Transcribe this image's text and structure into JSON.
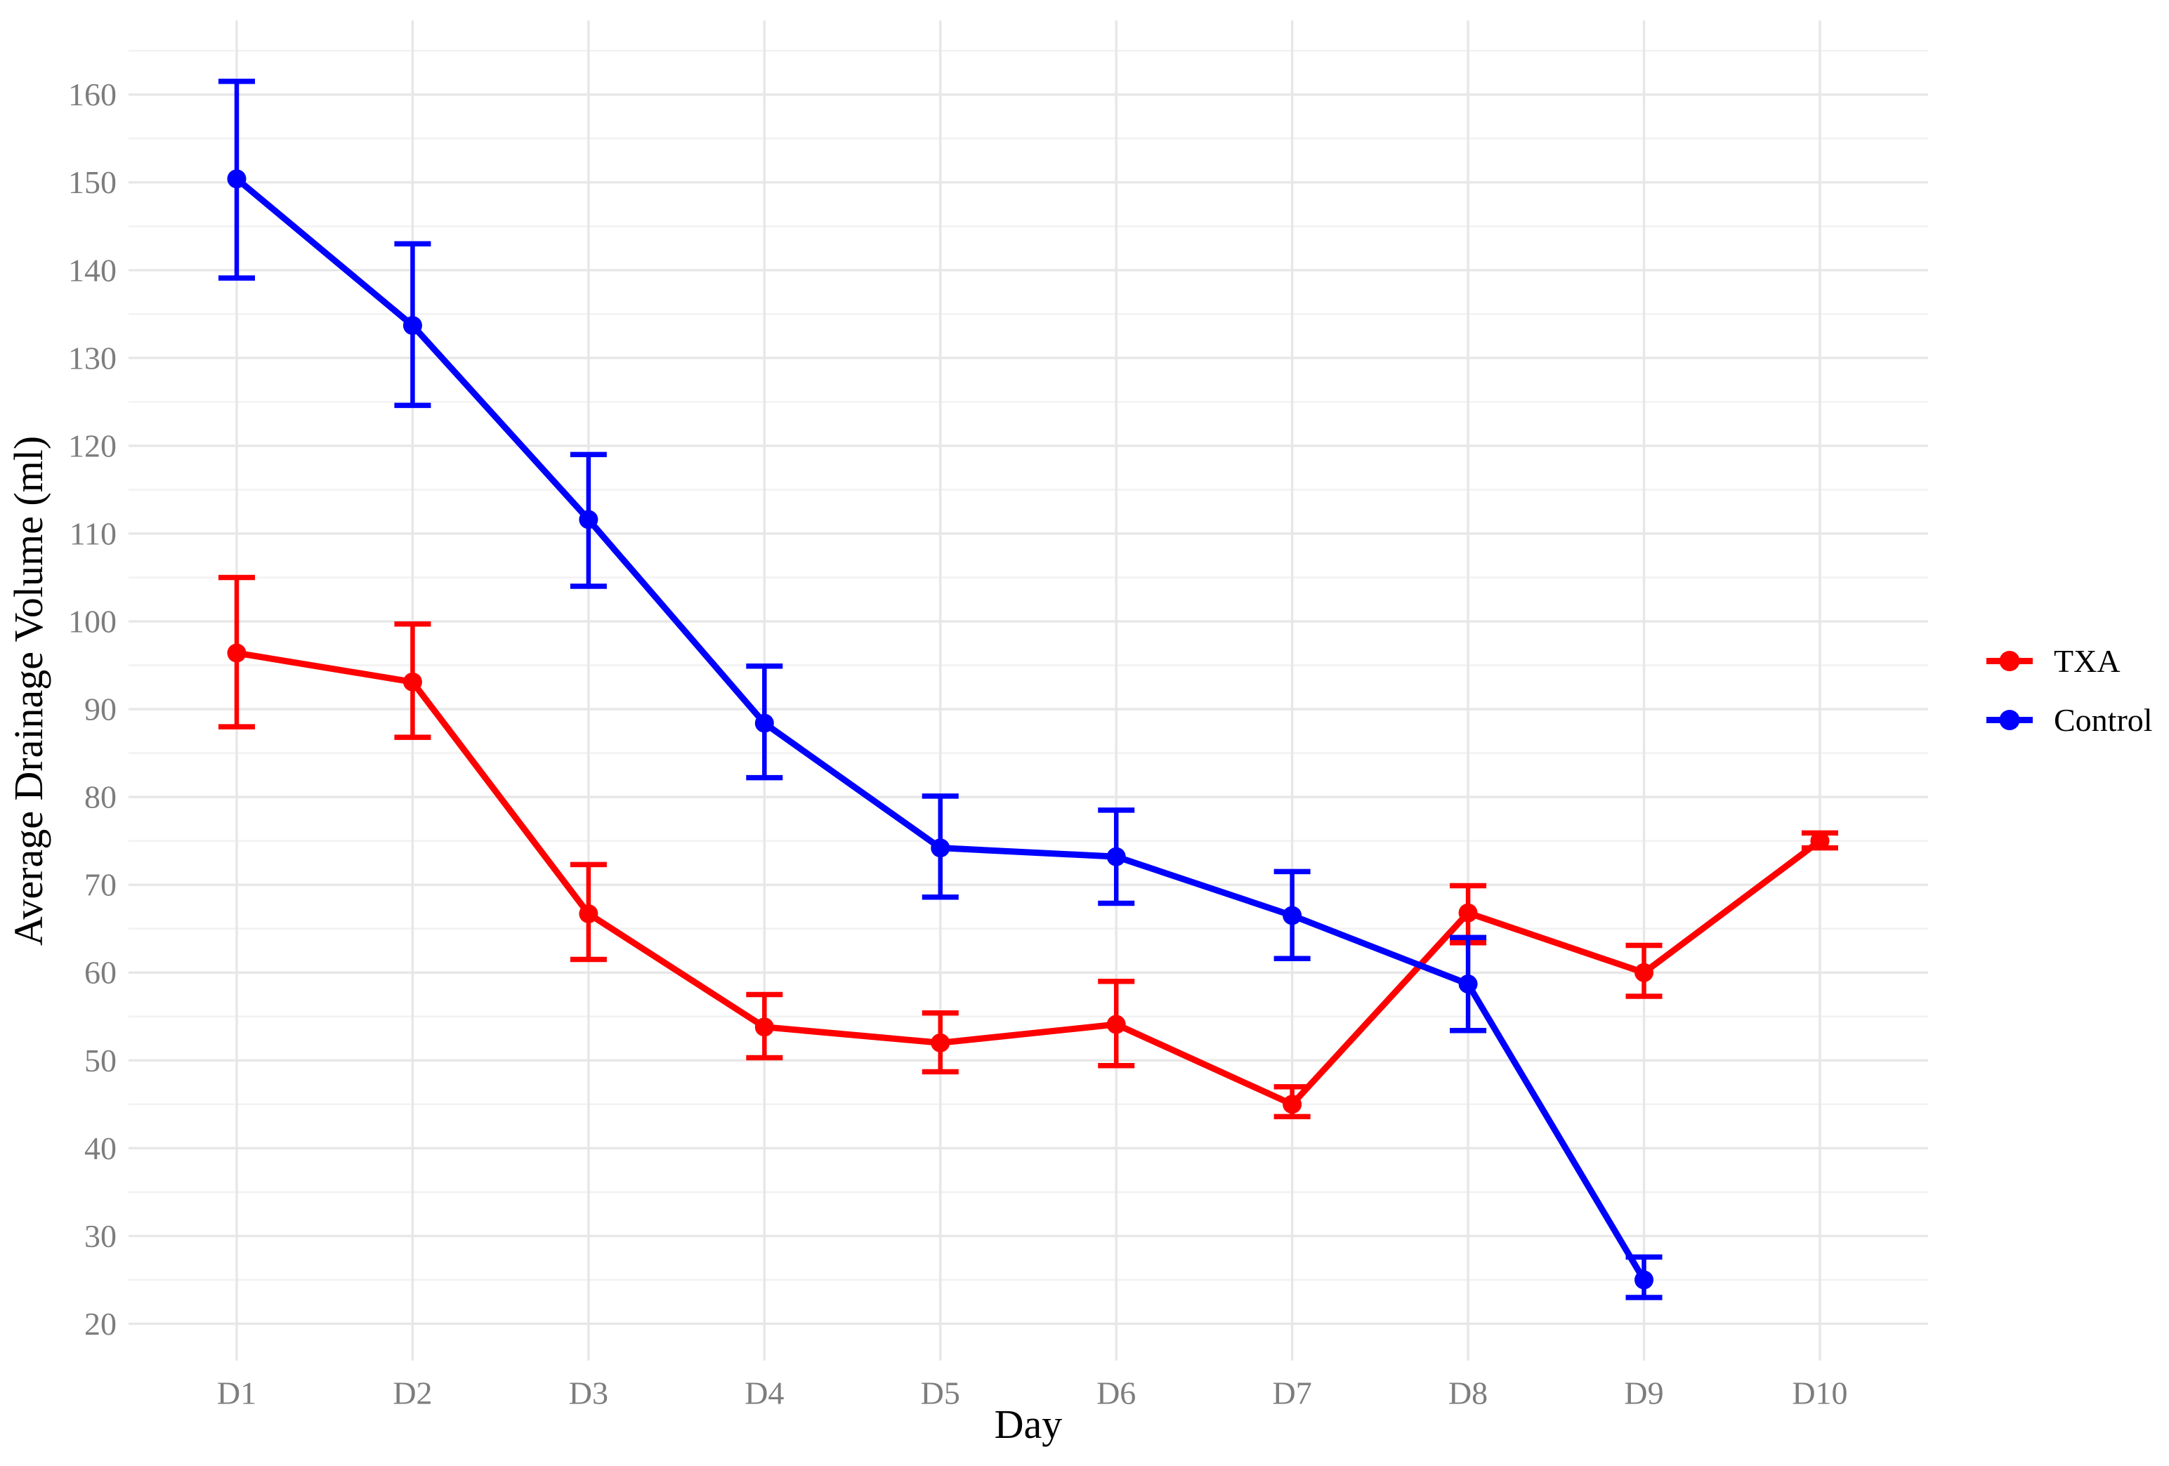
{
  "chart_data": {
    "type": "line",
    "title": "",
    "xlabel": "Day",
    "ylabel": "Average Drainage Volume (ml)",
    "categories": [
      "D1",
      "D2",
      "D3",
      "D4",
      "D5",
      "D6",
      "D7",
      "D8",
      "D9",
      "D10"
    ],
    "yticks": [
      20,
      30,
      40,
      50,
      60,
      70,
      80,
      90,
      100,
      110,
      120,
      130,
      140,
      150,
      160
    ],
    "yminorticks": [
      25,
      35,
      45,
      55,
      65,
      75,
      85,
      95,
      105,
      115,
      125,
      135,
      145,
      155,
      165
    ],
    "ylim": [
      15.8,
      168.45
    ],
    "grid": {
      "show": true,
      "major_color": "#e7e7e7",
      "minor_color": "#f2f2f2"
    },
    "legend_position": "right",
    "background_color": "#ffffff",
    "tick_text_color": "#7d7d7d",
    "title_text_color": "#000000",
    "series": [
      {
        "name": "TXA",
        "color": "#ff0000",
        "values": [
          96.4,
          93.1,
          66.7,
          53.8,
          52.0,
          54.1,
          45.0,
          66.8,
          60.0,
          75.0
        ],
        "err_low": [
          88.0,
          86.8,
          61.5,
          50.3,
          48.7,
          49.4,
          43.6,
          63.4,
          57.3,
          74.2
        ],
        "err_high": [
          105.0,
          99.7,
          72.3,
          57.5,
          55.4,
          59.0,
          47.0,
          69.9,
          63.1,
          75.9
        ]
      },
      {
        "name": "Control",
        "color": "#0000ff",
        "values": [
          150.4,
          133.7,
          111.6,
          88.4,
          74.2,
          73.2,
          66.5,
          58.7,
          25.0,
          null
        ],
        "err_low": [
          139.1,
          124.6,
          104.0,
          82.2,
          68.6,
          67.9,
          61.6,
          53.4,
          23.0,
          null
        ],
        "err_high": [
          161.5,
          143.0,
          119.0,
          94.9,
          80.1,
          78.5,
          71.5,
          64.0,
          27.6,
          null
        ]
      }
    ]
  }
}
